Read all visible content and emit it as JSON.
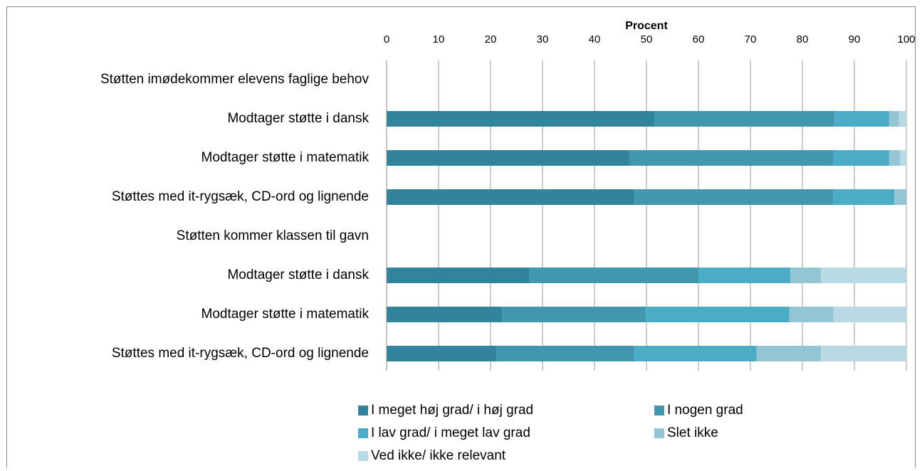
{
  "chart_data": {
    "type": "stacked-bar-horizontal",
    "x_label": "Procent",
    "categories": [
      "Støtten imødekommer elevens faglige behov",
      "Modtager støtte i dansk",
      "Modtager støtte i matematik",
      "Støttes med it-rygsæk, CD-ord og lignende",
      "Støtten kommer klassen til gavn",
      "Modtager støtte i dansk",
      "Modtager støtte i matematik",
      "Støttes med it-rygsæk, CD-ord og lignende"
    ],
    "series": [
      {
        "name": "I meget høj grad/ i høj grad",
        "color": "#31849b",
        "values": [
          null,
          51.5,
          46.7,
          47.7,
          null,
          27.4,
          22.2,
          21.2
        ]
      },
      {
        "name": "I nogen grad",
        "color": "#4198ae",
        "values": [
          null,
          34.7,
          39.3,
          38.2,
          null,
          32.6,
          27.7,
          26.5
        ]
      },
      {
        "name": "I lav grad/ i meget lav grad",
        "color": "#4bacc6",
        "values": [
          null,
          10.5,
          10.7,
          11.8,
          null,
          17.7,
          27.6,
          23.5
        ]
      },
      {
        "name": "Slet ikke",
        "color": "#93c5d5",
        "values": [
          null,
          1.9,
          2.1,
          2.3,
          null,
          5.9,
          8.5,
          12.4
        ]
      },
      {
        "name": "Ved ikke/ ikke relevant",
        "color": "#b9d9e4",
        "values": [
          null,
          1.4,
          1.2,
          0,
          null,
          16.4,
          14.0,
          16.4
        ]
      }
    ],
    "xlim": [
      0,
      100
    ],
    "xticks": [
      0,
      10,
      20,
      30,
      40,
      50,
      60,
      70,
      80,
      90,
      100
    ],
    "grid": true
  }
}
